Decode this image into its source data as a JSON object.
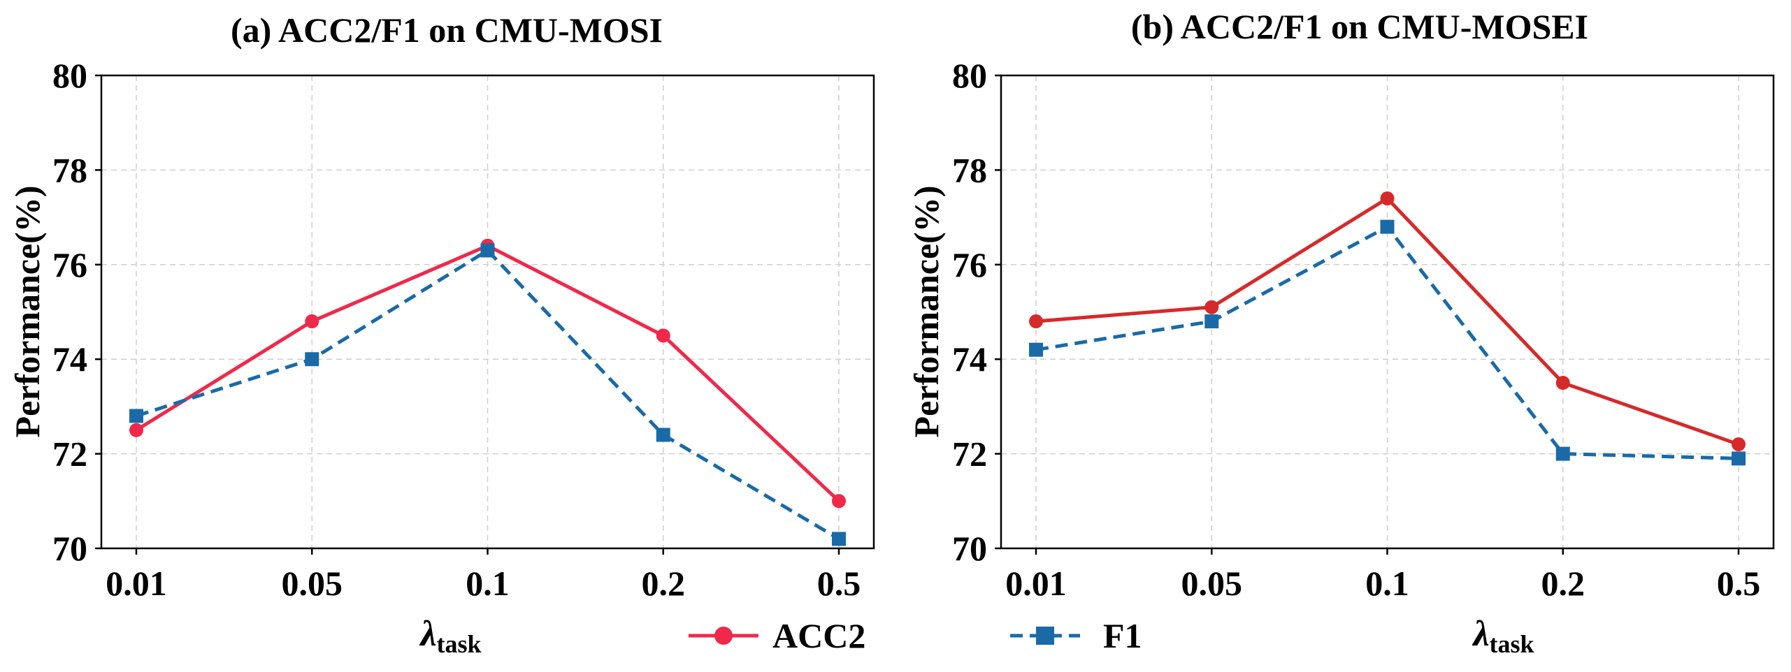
{
  "chart_data": [
    {
      "type": "line",
      "title": "(a) ACC2/F1 on CMU-MOSI",
      "xlabel": "λ",
      "xlabel_sub": "task",
      "ylabel": "Performance(%)",
      "categories": [
        "0.01",
        "0.05",
        "0.1",
        "0.2",
        "0.5"
      ],
      "ylim": [
        70,
        80
      ],
      "yticks": [
        "70",
        "72",
        "74",
        "76",
        "78",
        "80"
      ],
      "grid": true,
      "series": [
        {
          "name": "ACC2",
          "color": "#f0284a",
          "marker": "circle",
          "dash": "solid",
          "values": [
            72.5,
            74.8,
            76.4,
            74.5,
            71.0
          ]
        },
        {
          "name": "F1",
          "color": "#1a6aa8",
          "marker": "square",
          "dash": "dashed",
          "values": [
            72.8,
            74.0,
            76.3,
            72.4,
            70.2
          ]
        }
      ]
    },
    {
      "type": "line",
      "title": "(b) ACC2/F1 on CMU-MOSEI",
      "xlabel": "λ",
      "xlabel_sub": "task",
      "ylabel": "Performance(%)",
      "categories": [
        "0.01",
        "0.05",
        "0.1",
        "0.2",
        "0.5"
      ],
      "ylim": [
        70,
        80
      ],
      "yticks": [
        "70",
        "72",
        "74",
        "76",
        "78",
        "80"
      ],
      "grid": true,
      "series": [
        {
          "name": "ACC2",
          "color": "#d62a2a",
          "marker": "circle",
          "dash": "solid",
          "values": [
            74.8,
            75.1,
            77.4,
            73.5,
            72.2
          ]
        },
        {
          "name": "F1",
          "color": "#1a6aa8",
          "marker": "square",
          "dash": "dashed",
          "values": [
            74.2,
            74.8,
            76.8,
            72.0,
            71.9
          ]
        }
      ]
    }
  ],
  "legend": {
    "items": [
      {
        "label": "ACC2",
        "color": "#f0284a",
        "marker": "circle",
        "dash": "solid"
      },
      {
        "label": "F1",
        "color": "#1a6aa8",
        "marker": "square",
        "dash": "dashed"
      }
    ]
  }
}
